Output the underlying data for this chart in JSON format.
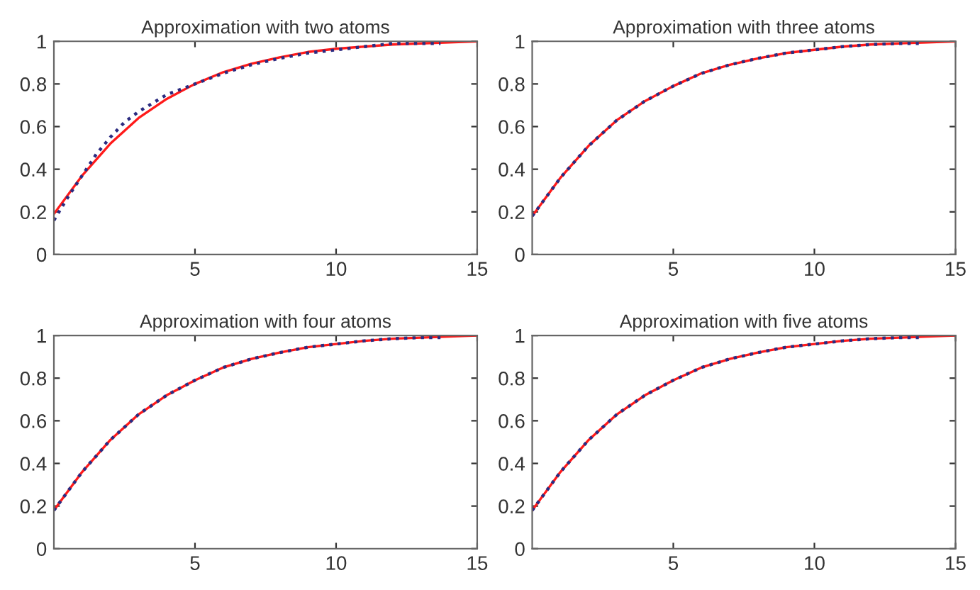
{
  "chart_data": [
    {
      "type": "line",
      "title": "Approximation with two atoms",
      "xlim": [
        0,
        15
      ],
      "xticks": [
        5,
        10,
        15
      ],
      "ylim": [
        0,
        1
      ],
      "yticks": [
        0,
        0.2,
        0.4,
        0.6,
        0.8,
        1
      ],
      "grid": false,
      "legend": false,
      "series": [
        {
          "color": "#ff1a1a",
          "line_style": "solid",
          "x": [
            0,
            1,
            2,
            3,
            4,
            5,
            6,
            7,
            8,
            9,
            10,
            11,
            12,
            13,
            14,
            15
          ],
          "values": [
            0.19,
            0.37,
            0.52,
            0.64,
            0.73,
            0.8,
            0.855,
            0.895,
            0.925,
            0.95,
            0.965,
            0.975,
            0.985,
            0.99,
            0.995,
            1.0
          ]
        },
        {
          "color": "#2b2b80",
          "line_style": "dotted",
          "x": [
            0,
            0.5,
            1,
            1.5,
            2,
            2.5,
            3,
            3.5,
            4,
            5,
            6,
            7,
            8,
            9,
            10,
            11,
            12,
            13,
            13.7
          ],
          "values": [
            0.16,
            0.27,
            0.37,
            0.47,
            0.55,
            0.62,
            0.67,
            0.71,
            0.75,
            0.8,
            0.85,
            0.89,
            0.92,
            0.945,
            0.96,
            0.975,
            0.99,
            0.99,
            0.99
          ]
        }
      ]
    },
    {
      "type": "line",
      "title": "Approximation with three atoms",
      "xlim": [
        0,
        15
      ],
      "xticks": [
        5,
        10,
        15
      ],
      "ylim": [
        0,
        1
      ],
      "yticks": [
        0,
        0.2,
        0.4,
        0.6,
        0.8,
        1
      ],
      "grid": false,
      "legend": false,
      "series": [
        {
          "color": "#ff1a1a",
          "line_style": "solid",
          "x": [
            0,
            1,
            2,
            3,
            4,
            5,
            6,
            7,
            8,
            9,
            10,
            11,
            12,
            13,
            14,
            15
          ],
          "values": [
            0.18,
            0.36,
            0.51,
            0.63,
            0.72,
            0.79,
            0.85,
            0.89,
            0.92,
            0.945,
            0.96,
            0.975,
            0.985,
            0.99,
            0.995,
            1.0
          ]
        },
        {
          "color": "#2b2b80",
          "line_style": "dotted",
          "x": [
            0,
            1,
            2,
            3,
            4,
            5,
            6,
            7,
            8,
            9,
            10,
            11,
            12,
            13,
            13.7
          ],
          "values": [
            0.18,
            0.36,
            0.51,
            0.63,
            0.72,
            0.79,
            0.85,
            0.89,
            0.92,
            0.945,
            0.96,
            0.975,
            0.985,
            0.99,
            0.99
          ]
        }
      ]
    },
    {
      "type": "line",
      "title": "Approximation with four atoms",
      "xlim": [
        0,
        15
      ],
      "xticks": [
        5,
        10,
        15
      ],
      "ylim": [
        0,
        1
      ],
      "yticks": [
        0,
        0.2,
        0.4,
        0.6,
        0.8,
        1
      ],
      "grid": false,
      "legend": false,
      "series": [
        {
          "color": "#ff1a1a",
          "line_style": "solid",
          "x": [
            0,
            1,
            2,
            3,
            4,
            5,
            6,
            7,
            8,
            9,
            10,
            11,
            12,
            13,
            14,
            15
          ],
          "values": [
            0.18,
            0.36,
            0.51,
            0.63,
            0.72,
            0.79,
            0.85,
            0.89,
            0.92,
            0.945,
            0.96,
            0.975,
            0.985,
            0.99,
            0.995,
            1.0
          ]
        },
        {
          "color": "#2b2b80",
          "line_style": "dotted",
          "x": [
            0,
            1,
            2,
            3,
            4,
            5,
            6,
            7,
            8,
            9,
            10,
            11,
            12,
            13,
            13.7
          ],
          "values": [
            0.18,
            0.36,
            0.51,
            0.63,
            0.72,
            0.79,
            0.85,
            0.89,
            0.92,
            0.945,
            0.96,
            0.975,
            0.985,
            0.99,
            0.99
          ]
        }
      ]
    },
    {
      "type": "line",
      "title": "Approximation with five atoms",
      "xlim": [
        0,
        15
      ],
      "xticks": [
        5,
        10,
        15
      ],
      "ylim": [
        0,
        1
      ],
      "yticks": [
        0,
        0.2,
        0.4,
        0.6,
        0.8,
        1
      ],
      "grid": false,
      "legend": false,
      "series": [
        {
          "color": "#ff1a1a",
          "line_style": "solid",
          "x": [
            0,
            1,
            2,
            3,
            4,
            5,
            6,
            7,
            8,
            9,
            10,
            11,
            12,
            13,
            14,
            15
          ],
          "values": [
            0.18,
            0.36,
            0.51,
            0.63,
            0.72,
            0.79,
            0.85,
            0.89,
            0.92,
            0.945,
            0.96,
            0.975,
            0.985,
            0.99,
            0.995,
            1.0
          ]
        },
        {
          "color": "#2b2b80",
          "line_style": "dotted",
          "x": [
            0,
            1,
            2,
            3,
            4,
            5,
            6,
            7,
            8,
            9,
            10,
            11,
            12,
            13,
            13.7
          ],
          "values": [
            0.18,
            0.36,
            0.51,
            0.63,
            0.72,
            0.79,
            0.85,
            0.89,
            0.92,
            0.945,
            0.96,
            0.975,
            0.985,
            0.99,
            0.99
          ]
        }
      ]
    }
  ]
}
